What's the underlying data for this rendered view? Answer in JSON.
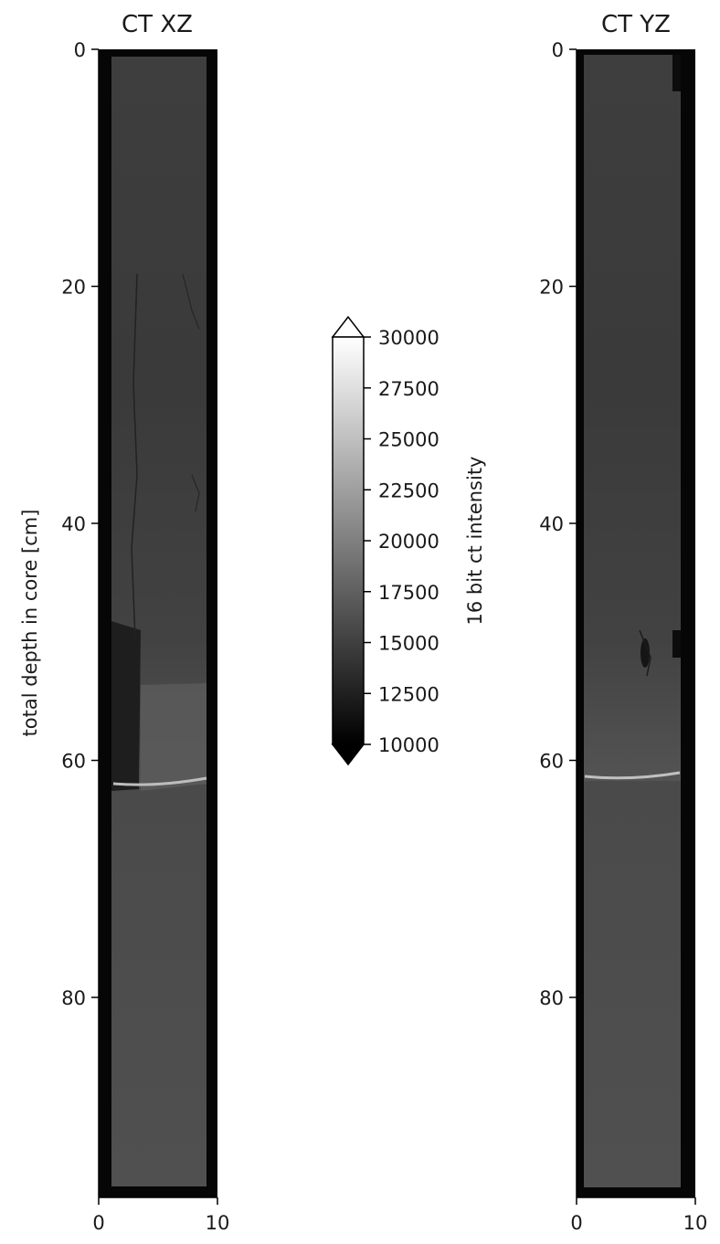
{
  "chart_data": [
    {
      "type": "heatmap",
      "title": "CT XZ",
      "xlabel": "",
      "ylabel": "total depth in core [cm]",
      "xlim": [
        0,
        10
      ],
      "ylim": [
        100,
        0
      ],
      "xticks": [
        0,
        10
      ],
      "yticks": [
        0,
        20,
        40,
        60,
        80
      ],
      "grid": false,
      "features": [
        {
          "depth": 62,
          "description": "bright thin layer"
        },
        {
          "depth_range": [
            57,
            62
          ],
          "description": "dark zone near left edge"
        }
      ]
    },
    {
      "type": "heatmap",
      "title": "CT YZ",
      "xlabel": "",
      "ylabel": "",
      "xlim": [
        0,
        10
      ],
      "ylim": [
        100,
        0
      ],
      "xticks": [
        0,
        10
      ],
      "yticks": [
        0,
        20,
        40,
        60,
        80
      ],
      "grid": false,
      "features": [
        {
          "depth": 61.5,
          "description": "bright thin layer"
        },
        {
          "depth_range": [
            50,
            53
          ],
          "description": "dark lens"
        }
      ]
    }
  ],
  "colorbar": {
    "label": "16 bit ct intensity",
    "min": 10000,
    "max": 30000,
    "ticks": [
      10000,
      12500,
      15000,
      17500,
      20000,
      22500,
      25000,
      27500,
      30000
    ],
    "colormap": "gray",
    "extend": "both"
  }
}
